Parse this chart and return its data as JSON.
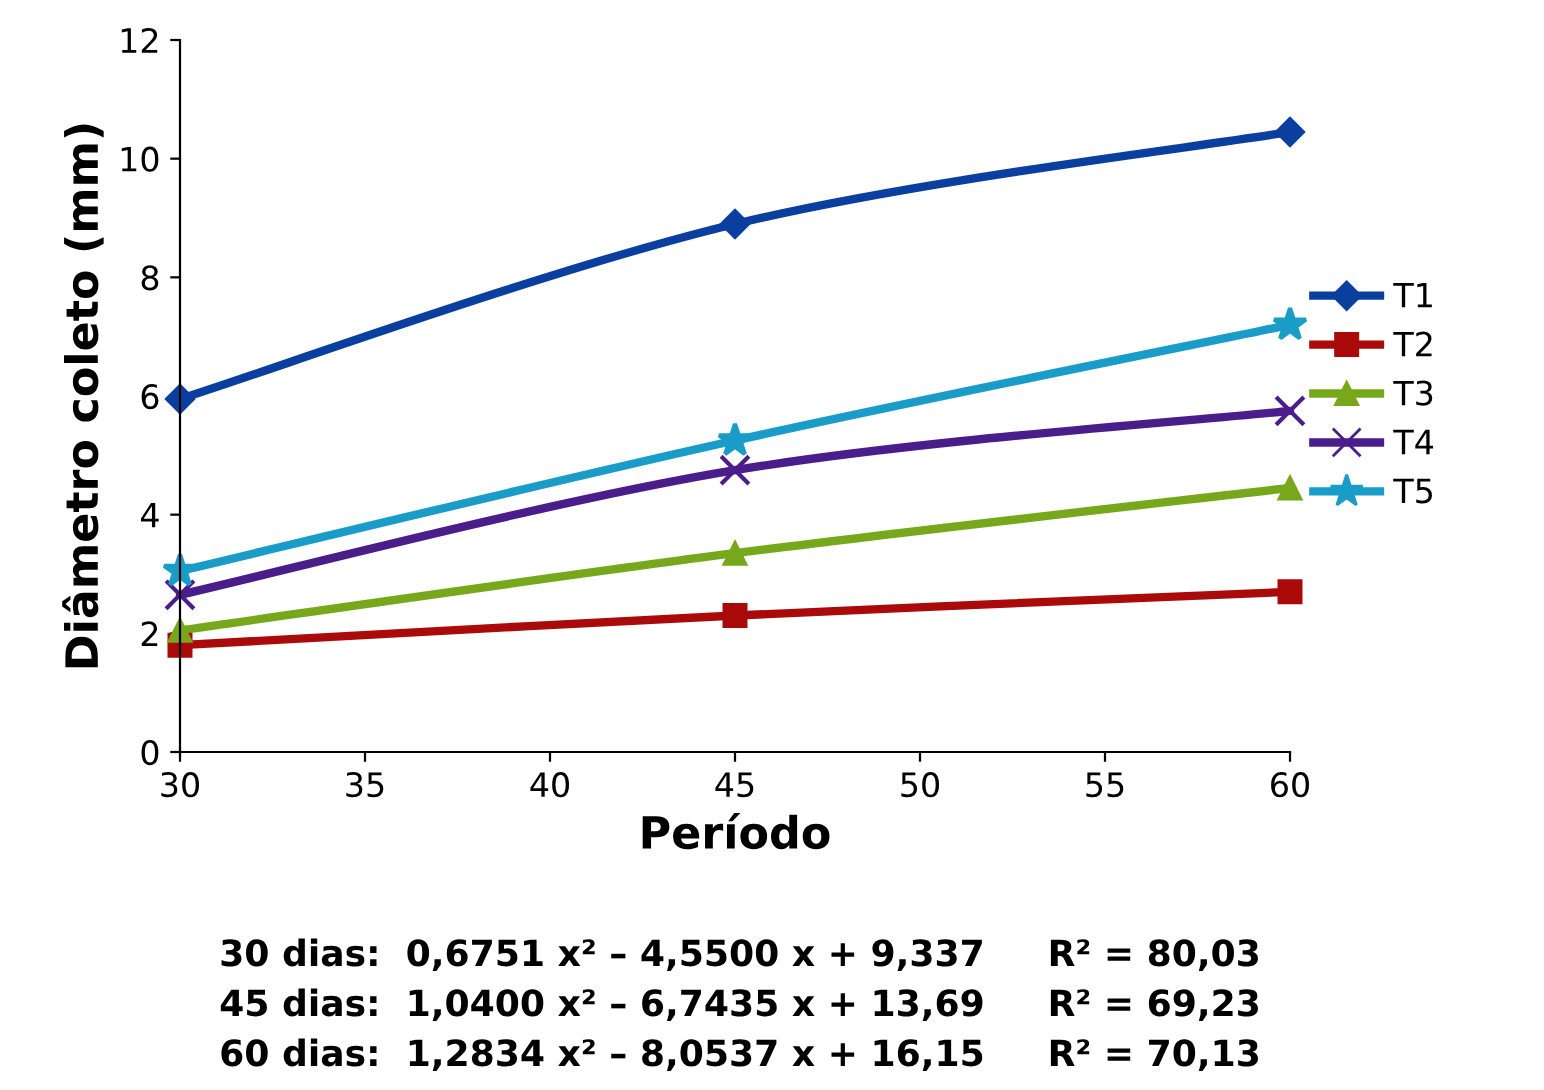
{
  "chart_data": {
    "type": "line",
    "xlabel": "Período",
    "ylabel": "Diâmetro coleto (mm)",
    "x": [
      30,
      45,
      60
    ],
    "series": [
      {
        "name": "T1",
        "color": "#0a3fa0",
        "marker": "diamond",
        "values": [
          5.95,
          8.9,
          10.45
        ]
      },
      {
        "name": "T2",
        "color": "#aa0a0a",
        "marker": "square",
        "values": [
          1.8,
          2.3,
          2.7
        ]
      },
      {
        "name": "T3",
        "color": "#77a81b",
        "marker": "triangle",
        "values": [
          2.05,
          3.35,
          4.45
        ]
      },
      {
        "name": "T4",
        "color": "#4b1d8a",
        "marker": "cross",
        "values": [
          2.65,
          4.75,
          5.75
        ]
      },
      {
        "name": "T5",
        "color": "#1a9cc9",
        "marker": "star",
        "values": [
          3.05,
          5.25,
          7.2
        ]
      }
    ],
    "xlim": [
      30,
      60
    ],
    "xticks": [
      30,
      35,
      40,
      45,
      50,
      55,
      60
    ],
    "ylim": [
      0,
      12
    ],
    "yticks": [
      0,
      2,
      4,
      6,
      8,
      10,
      12
    ],
    "grid": false,
    "legend": "right",
    "annotations": [
      "30 dias:  0,6751 x² – 4,5500 x + 9,337     R² = 80,03",
      "45 dias:  1,0400 x² – 6,7435 x + 13,69     R² = 69,23",
      "60 dias:  1,2834 x² – 8,0537 x + 16,15     R² = 70,13"
    ]
  }
}
